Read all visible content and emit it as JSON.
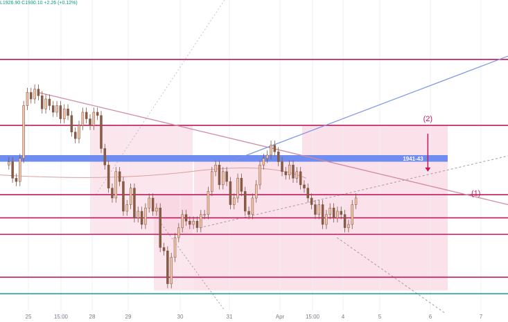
{
  "header": {
    "ohlc_text": "L1926.90  C1930.10  +2.26 (+0.12%)"
  },
  "colors": {
    "background": "#ffffff",
    "candle_up": "#f3c1a7",
    "candle_down": "#8b5a44",
    "candle_wick": "#7a5444",
    "magenta_line": "#c2185b",
    "light_magenta_line": "#d08aa3",
    "blue_band": "#6f8cf0",
    "blue_trendline": "#7b93e6",
    "teal_line": "#26a69a",
    "zone_fill": "#f8c8d8",
    "arrow": "#c2185b",
    "dotted_line": "#9e9e9e",
    "axis_text": "#787b86",
    "grid_line": "#eef0f3"
  },
  "chart_data": {
    "type": "candlestick",
    "x_tick_labels": [
      "25",
      "15:00",
      "28",
      "29",
      "30",
      "31",
      "Apr",
      "15:00",
      "4",
      "5",
      "6",
      "7"
    ],
    "ylim": [
      1896,
      1990
    ],
    "horizontal_levels": [
      {
        "name": "resistance-top",
        "value": 1972,
        "color": "#c2185b"
      },
      {
        "name": "resistance-mid",
        "value": 1952,
        "color": "#c2185b"
      },
      {
        "name": "support-1",
        "value": 1931,
        "color": "#c2185b"
      },
      {
        "name": "support-2",
        "value": 1924,
        "color": "#c2185b"
      },
      {
        "name": "support-3",
        "value": 1919,
        "color": "#c2185b"
      },
      {
        "name": "support-4",
        "value": 1906,
        "color": "#c2185b"
      },
      {
        "name": "low-line",
        "value": 1901,
        "color": "#26a69a"
      }
    ],
    "band": {
      "label": "1941-43",
      "low": 1941,
      "high": 1943
    },
    "annotations": [
      {
        "label": "(2)",
        "x": 9.95,
        "y": 1952
      },
      {
        "label": "(1)",
        "x": 10.9,
        "y": 1932
      }
    ],
    "candles_open": 1940,
    "candles_close": [
      1941,
      1936,
      1935,
      1942,
      1958,
      1962,
      1960,
      1963,
      1961,
      1957,
      1960,
      1958,
      1956,
      1958,
      1954,
      1957,
      1955,
      1950,
      1948,
      1952,
      1956,
      1954,
      1952,
      1956,
      1955,
      1945,
      1940,
      1933,
      1930,
      1938,
      1935,
      1926,
      1928,
      1933,
      1924,
      1926,
      1922,
      1927,
      1930,
      1926,
      1927,
      1915,
      1914,
      1904,
      1912,
      1918,
      1921,
      1925,
      1923,
      1922,
      1923,
      1921,
      1925,
      1925,
      1932,
      1938,
      1940,
      1934,
      1938,
      1935,
      1928,
      1930,
      1936,
      1932,
      1926,
      1925,
      1930,
      1934,
      1940,
      1942,
      1943,
      1946,
      1944,
      1941,
      1938,
      1937,
      1940,
      1936,
      1938,
      1934,
      1933,
      1930,
      1928,
      1925,
      1928,
      1922,
      1925,
      1927,
      1924,
      1926,
      1925,
      1921,
      1922,
      1928,
      1930
    ]
  }
}
